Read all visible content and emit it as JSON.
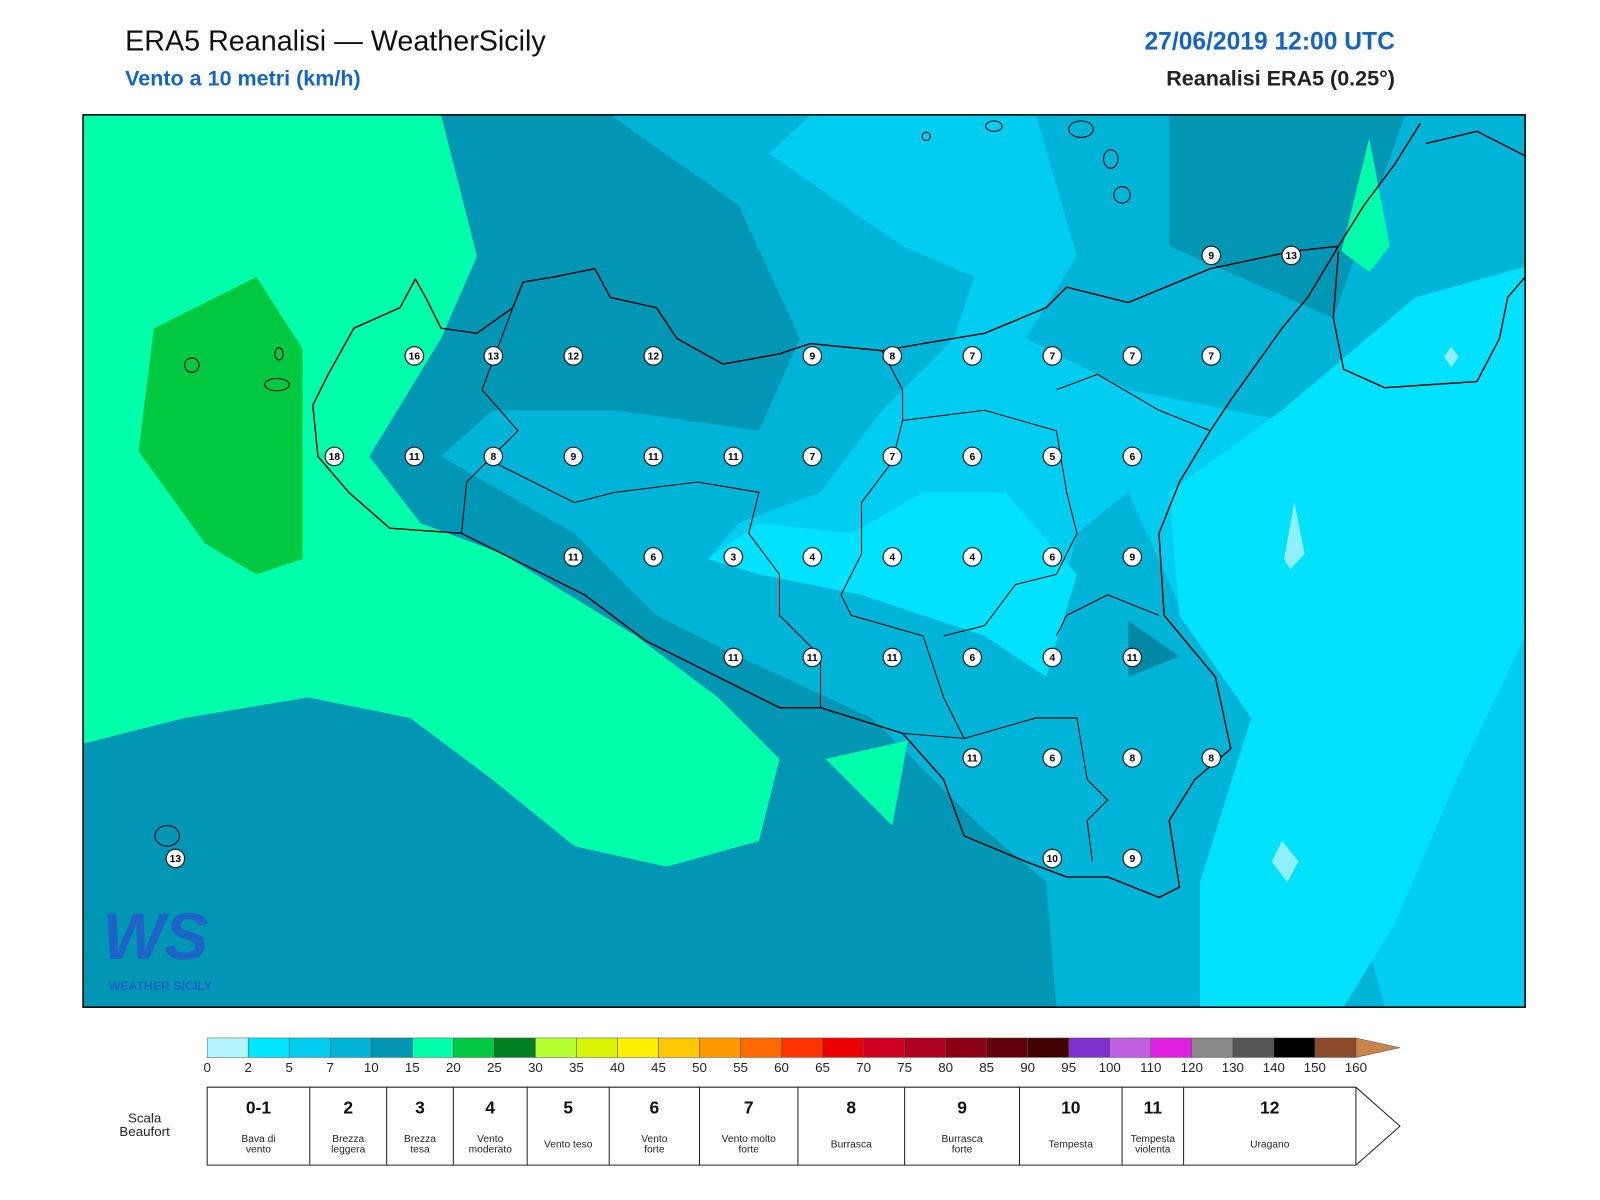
{
  "header": {
    "title": "ERA5 Reanalisi — WeatherSicily",
    "subtitle": "Vento a 10 metri (km/h)",
    "datetime": "27/06/2019 12:00 UTC",
    "source": "Reanalisi ERA5 (0.25°)"
  },
  "logo": {
    "mark": "WS",
    "name": "WEATHER SICILY"
  },
  "stations": [
    {
      "value": 9
    },
    {
      "value": 13
    },
    {
      "value": 16
    },
    {
      "value": 13
    },
    {
      "value": 12
    },
    {
      "value": 12
    },
    {
      "value": 9
    },
    {
      "value": 8
    },
    {
      "value": 7
    },
    {
      "value": 7
    },
    {
      "value": 7
    },
    {
      "value": 7
    },
    {
      "value": 18
    },
    {
      "value": 11
    },
    {
      "value": 8
    },
    {
      "value": 9
    },
    {
      "value": 11
    },
    {
      "value": 11
    },
    {
      "value": 7
    },
    {
      "value": 7
    },
    {
      "value": 6
    },
    {
      "value": 5
    },
    {
      "value": 6
    },
    {
      "value": 11
    },
    {
      "value": 6
    },
    {
      "value": 3
    },
    {
      "value": 4
    },
    {
      "value": 4
    },
    {
      "value": 4
    },
    {
      "value": 6
    },
    {
      "value": 9
    },
    {
      "value": 11
    },
    {
      "value": 11
    },
    {
      "value": 11
    },
    {
      "value": 6
    },
    {
      "value": 4
    },
    {
      "value": 11
    },
    {
      "value": 11
    },
    {
      "value": 6
    },
    {
      "value": 8
    },
    {
      "value": 8
    },
    {
      "value": 13
    },
    {
      "value": 10
    },
    {
      "value": 9
    }
  ],
  "colorbar": {
    "ticks": [
      0,
      2,
      5,
      7,
      10,
      15,
      20,
      25,
      30,
      35,
      40,
      45,
      50,
      55,
      60,
      65,
      70,
      75,
      80,
      85,
      90,
      95,
      100,
      110,
      120,
      130,
      140,
      150,
      160
    ],
    "colors": [
      "#b4f4ff",
      "#00e6ff",
      "#00cdf0",
      "#00b4d8",
      "#0096b4",
      "#00ffaa",
      "#00c840",
      "#008020",
      "#b4ff30",
      "#d8f400",
      "#ffee00",
      "#ffc800",
      "#ff9900",
      "#ff6a00",
      "#ff3300",
      "#ee0000",
      "#d00020",
      "#b00020",
      "#8c0014",
      "#640008",
      "#400000",
      "#8030d0",
      "#c060e0",
      "#e020e0",
      "#888888",
      "#555555",
      "#000000",
      "#8a4a2a",
      "#c8844a"
    ]
  },
  "beaufort": {
    "label": [
      "Scala",
      "Beaufort"
    ],
    "levels": [
      {
        "force": "0-1",
        "description": [
          "Bava di",
          "vento"
        ]
      },
      {
        "force": "2",
        "description": [
          "Brezza",
          "leggera"
        ]
      },
      {
        "force": "3",
        "description": [
          "Brezza",
          "tesa"
        ]
      },
      {
        "force": "4",
        "description": [
          "Vento",
          "moderato"
        ]
      },
      {
        "force": "5",
        "description": [
          "Vento teso"
        ]
      },
      {
        "force": "6",
        "description": [
          "Vento",
          "forte"
        ]
      },
      {
        "force": "7",
        "description": [
          "Vento molto",
          "forte"
        ]
      },
      {
        "force": "8",
        "description": [
          "Burrasca"
        ]
      },
      {
        "force": "9",
        "description": [
          "Burrasca",
          "forte"
        ]
      },
      {
        "force": "10",
        "description": [
          "Tempesta"
        ]
      },
      {
        "force": "11",
        "description": [
          "Tempesta",
          "violenta"
        ]
      },
      {
        "force": "12",
        "description": [
          "Uragano"
        ]
      }
    ]
  }
}
